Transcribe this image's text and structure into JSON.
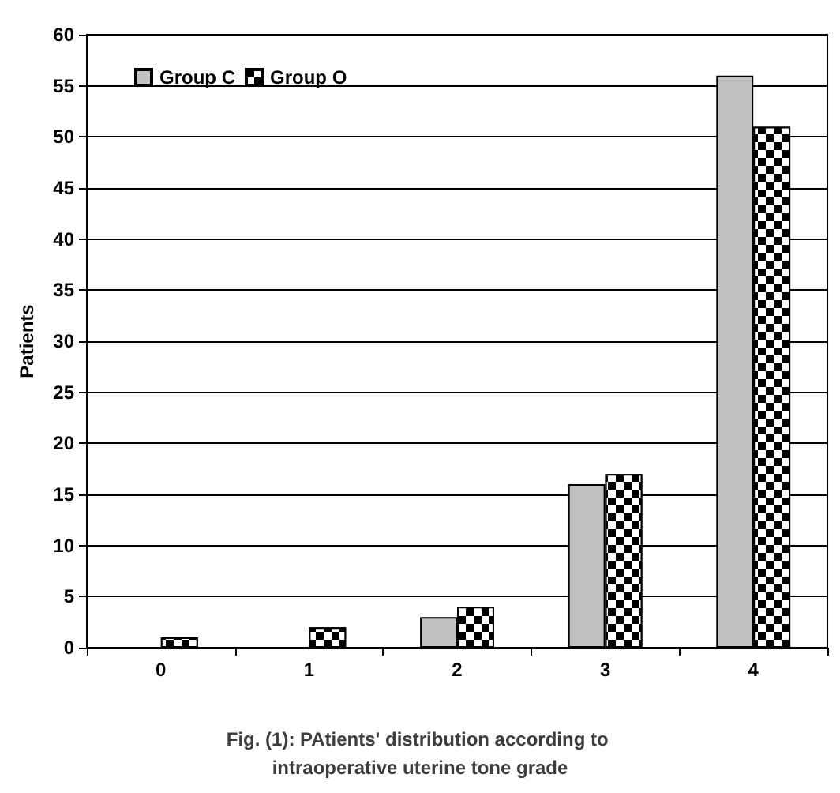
{
  "chart_data": {
    "type": "bar",
    "title": "Fig. (1): PAtients' distribution according to intraoperative uterine tone grade",
    "ylabel": "Patients",
    "categories": [
      "0",
      "1",
      "2",
      "3",
      "4"
    ],
    "series": [
      {
        "name": "Group C",
        "color": "#c0c0c0",
        "values": [
          0,
          0,
          3,
          16,
          56
        ]
      },
      {
        "name": "Group O",
        "color": "#000000",
        "values": [
          1,
          2,
          4,
          17,
          51
        ]
      }
    ],
    "ylim": [
      0,
      60
    ],
    "yticks": [
      0,
      5,
      10,
      15,
      20,
      25,
      30,
      35,
      40,
      45,
      50,
      55,
      60
    ],
    "grid": "y",
    "legend": "top left"
  }
}
